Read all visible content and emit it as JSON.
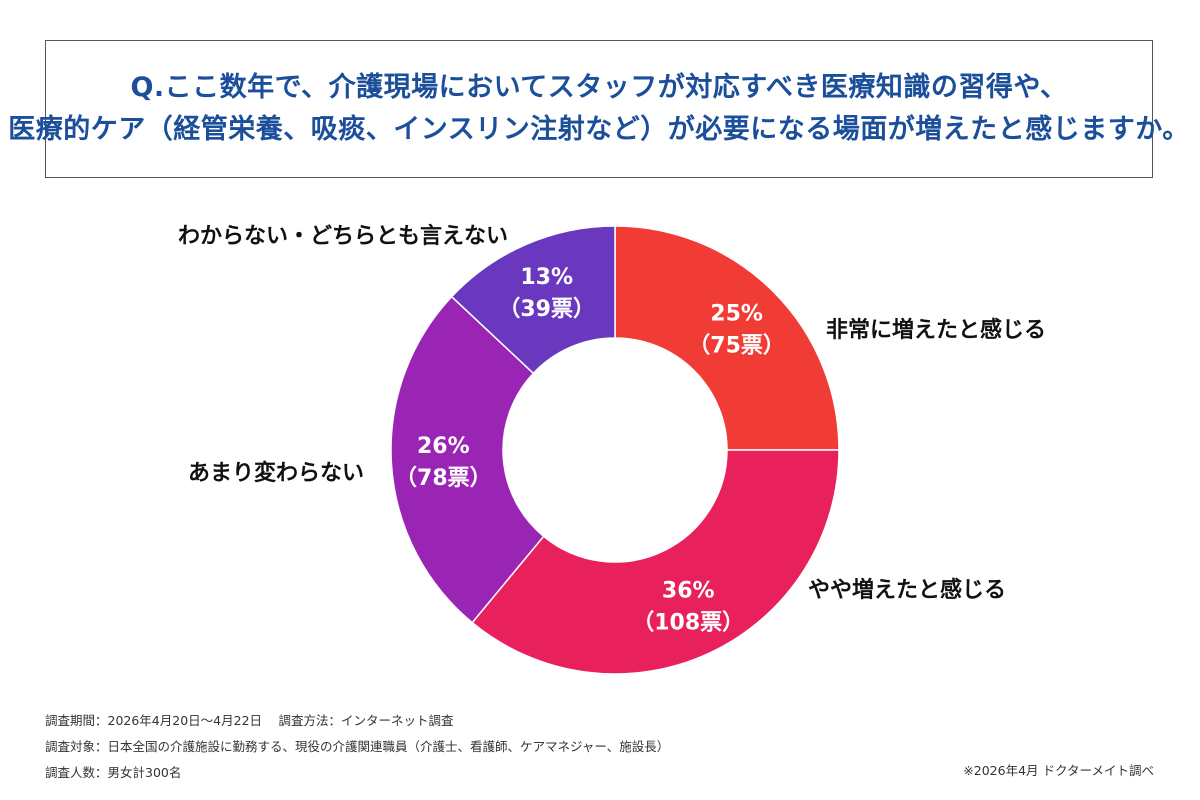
{
  "title": {
    "line1": "Q.ここ数年で、介護現場においてスタッフが対応すべき医療知識の習得や、",
    "line2": "医療的ケア（経管栄養、吸痰、インスリン注射など）が必要になる場面が増えたと感じますか。"
  },
  "chart_data": {
    "type": "pie",
    "variant": "donut",
    "categories": [
      "非常に増えたと感じる",
      "やや増えたと感じる",
      "あまり変わらない",
      "わからない・どちらとも言えない"
    ],
    "percent_labels": [
      "25%",
      "36%",
      "26%",
      "13%"
    ],
    "vote_labels": [
      "（75票）",
      "（108票）",
      "（78票）",
      "（39票）"
    ],
    "values": [
      25,
      36,
      26,
      13
    ],
    "votes": [
      75,
      108,
      78,
      39
    ],
    "start": "12 o'clock",
    "direction": "clockwise",
    "colors": [
      "#f03c35",
      "#e8205c",
      "#9a24b4",
      "#6a38bf"
    ]
  },
  "footer": {
    "period": "調査期間：2026年4月20日〜4月22日　 調査方法：インターネット調査",
    "target": "調査対象：日本全国の介護施設に勤務する、現役の介護関連職員（介護士、看護師、ケアマネジャー、施設長）",
    "count": "調査人数：男女計300名",
    "source": "※2026年4月 ドクターメイト調べ"
  }
}
